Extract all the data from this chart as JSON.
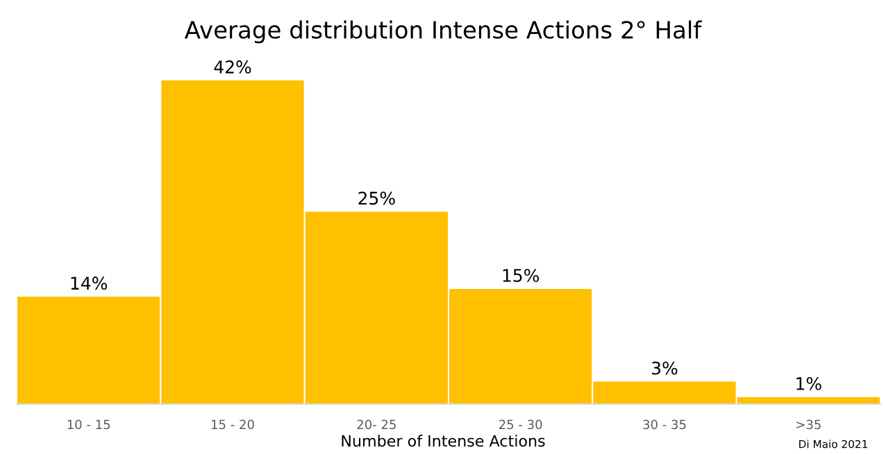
{
  "chart_data": {
    "type": "bar",
    "title": "Average distribution Intense Actions 2° Half",
    "xlabel": "Number of Intense Actions",
    "categories": [
      "10 - 15",
      "15 - 20",
      "20- 25",
      "25 - 30",
      "30 - 35",
      ">35"
    ],
    "values": [
      14,
      42,
      25,
      15,
      3,
      1
    ],
    "value_labels": [
      "14%",
      "42%",
      "25%",
      "15%",
      "3%",
      "1%"
    ],
    "color": "#ffc000",
    "annotations": [
      "Di Maio 2021"
    ],
    "tick_labels": "x"
  }
}
